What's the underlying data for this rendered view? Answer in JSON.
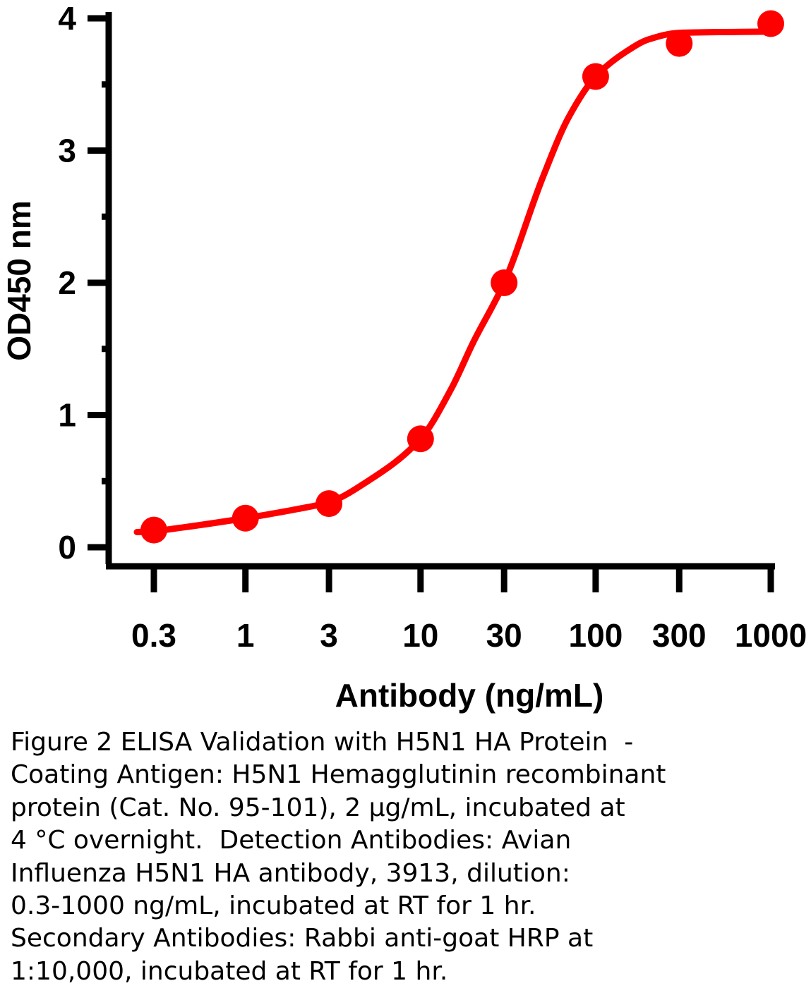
{
  "chart_data": {
    "type": "line",
    "x_tick_labels": [
      "0.3",
      "1",
      "3",
      "10",
      "30",
      "100",
      "300",
      "1000"
    ],
    "x_scale": "log",
    "y_ticks": [
      "0",
      "1",
      "2",
      "3",
      "4"
    ],
    "ylim": [
      0,
      4
    ],
    "xlabel": "Antibody (ng/mL)",
    "ylabel": "OD450 nm",
    "grid": false,
    "legend": "none",
    "series": [
      {
        "color": "#ff0000",
        "x": [
          0.3,
          1,
          3,
          10,
          30,
          100,
          300,
          1000
        ],
        "y": [
          0.13,
          0.22,
          0.33,
          0.82,
          2.0,
          3.56,
          3.81,
          3.96
        ],
        "fit_curve": {
          "x": [
            0.3,
            0.5,
            1,
            2,
            3,
            5,
            10,
            15,
            20,
            30,
            50,
            70,
            100,
            150,
            200,
            300,
            1000
          ],
          "y": [
            0.12,
            0.16,
            0.22,
            0.29,
            0.34,
            0.5,
            0.82,
            1.2,
            1.55,
            2.0,
            2.8,
            3.25,
            3.56,
            3.75,
            3.84,
            3.89,
            3.9
          ]
        }
      }
    ]
  },
  "caption_lines": [
    "Figure 2 ELISA Validation with H5N1 HA Protein  -",
    "Coating Antigen: H5N1 Hemagglutinin recombinant",
    "protein (Cat. No. 95-101), 2 μg/mL, incubated at",
    "4 °C overnight.  Detection Antibodies: Avian",
    "Influenza H5N1 HA antibody, 3913, dilution:",
    "0.3-1000 ng/mL, incubated at RT for 1 hr.",
    "Secondary Antibodies: Rabbi anti-goat HRP at",
    "1:10,000, incubated at RT for 1 hr."
  ]
}
